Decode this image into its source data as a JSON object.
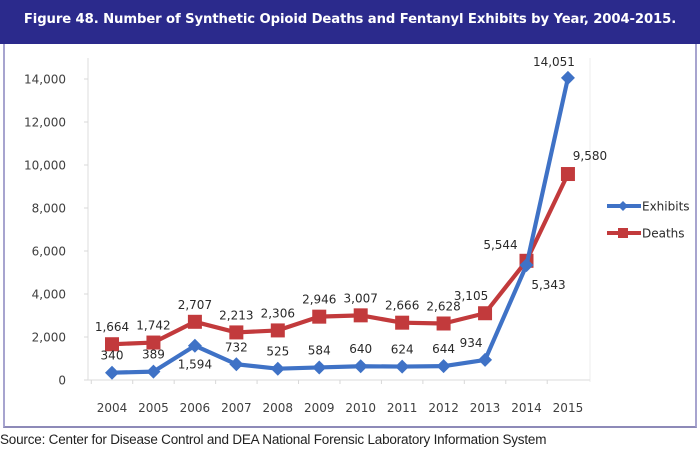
{
  "header": {
    "title": "Figure 48. Number of Synthetic Opioid Deaths and Fentanyl Exhibits by Year, 2004-2015."
  },
  "source": "Source: Center for Disease Control and DEA National Forensic Laboratory Information System",
  "colors": {
    "header_bg": "#2b2a8c",
    "exhibits": "#3f72c6",
    "deaths": "#c23a3c"
  },
  "chart_data": {
    "type": "line",
    "title": "Figure 48. Number of Synthetic Opioid Deaths and Fentanyl Exhibits by Year, 2004-2015.",
    "xlabel": "",
    "ylabel": "",
    "categories": [
      "2004",
      "2005",
      "2006",
      "2007",
      "2008",
      "2009",
      "2010",
      "2011",
      "2012",
      "2013",
      "2014",
      "2015"
    ],
    "series": [
      {
        "name": "Exhibits",
        "marker": "diamond",
        "values": [
          340,
          389,
          1594,
          732,
          525,
          584,
          640,
          624,
          644,
          934,
          5343,
          14051
        ],
        "labels": [
          "340",
          "389",
          "1,594",
          "732",
          "525",
          "584",
          "640",
          "624",
          "644",
          "934",
          "5,343",
          "14,051"
        ]
      },
      {
        "name": "Deaths",
        "marker": "square",
        "values": [
          1664,
          1742,
          2707,
          2213,
          2306,
          2946,
          3007,
          2666,
          2628,
          3105,
          5544,
          9580
        ],
        "labels": [
          "1,664",
          "1,742",
          "2,707",
          "2,213",
          "2,306",
          "2,946",
          "3,007",
          "2,666",
          "2,628",
          "3,105",
          "5,544",
          "9,580"
        ]
      }
    ],
    "ylim": [
      0,
      14000
    ],
    "yticks": [
      0,
      2000,
      4000,
      6000,
      8000,
      10000,
      12000,
      14000
    ],
    "ytick_labels": [
      "0",
      "2,000",
      "4,000",
      "6,000",
      "8,000",
      "10,000",
      "12,000",
      "14,000"
    ],
    "grid": false,
    "legend": {
      "position": "right",
      "entries": [
        "Exhibits",
        "Deaths"
      ]
    }
  }
}
